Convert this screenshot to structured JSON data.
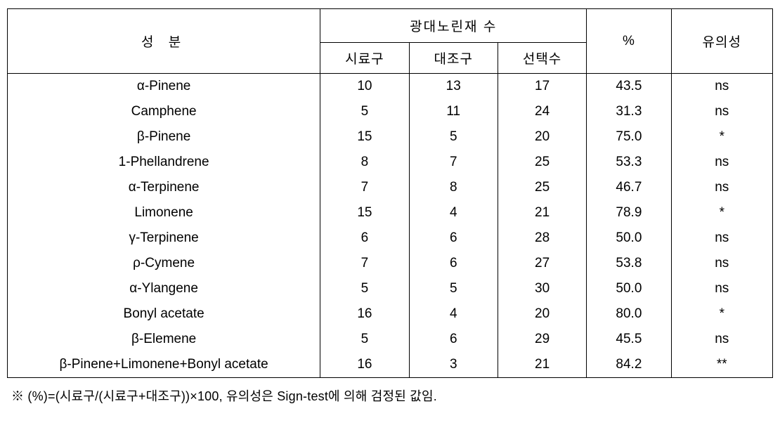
{
  "table": {
    "header": {
      "component": "성 분",
      "group_label": "광대노린재 수",
      "sub_columns": [
        "시료구",
        "대조구",
        "선택수"
      ],
      "percent": "%",
      "significance": "유의성"
    },
    "rows": [
      {
        "component": "α-Pinene",
        "sample": "10",
        "control": "13",
        "choice": "17",
        "percent": "43.5",
        "sig": "ns"
      },
      {
        "component": "Camphene",
        "sample": "5",
        "control": "11",
        "choice": "24",
        "percent": "31.3",
        "sig": "ns"
      },
      {
        "component": "β-Pinene",
        "sample": "15",
        "control": "5",
        "choice": "20",
        "percent": "75.0",
        "sig": "*"
      },
      {
        "component": "1-Phellandrene",
        "sample": "8",
        "control": "7",
        "choice": "25",
        "percent": "53.3",
        "sig": "ns"
      },
      {
        "component": "α-Terpinene",
        "sample": "7",
        "control": "8",
        "choice": "25",
        "percent": "46.7",
        "sig": "ns"
      },
      {
        "component": "Limonene",
        "sample": "15",
        "control": "4",
        "choice": "21",
        "percent": "78.9",
        "sig": "*"
      },
      {
        "component": "γ-Terpinene",
        "sample": "6",
        "control": "6",
        "choice": "28",
        "percent": "50.0",
        "sig": "ns"
      },
      {
        "component": "ρ-Cymene",
        "sample": "7",
        "control": "6",
        "choice": "27",
        "percent": "53.8",
        "sig": "ns"
      },
      {
        "component": "α-Ylangene",
        "sample": "5",
        "control": "5",
        "choice": "30",
        "percent": "50.0",
        "sig": "ns"
      },
      {
        "component": "Bonyl acetate",
        "sample": "16",
        "control": "4",
        "choice": "20",
        "percent": "80.0",
        "sig": "*"
      },
      {
        "component": "β-Elemene",
        "sample": "5",
        "control": "6",
        "choice": "29",
        "percent": "45.5",
        "sig": "ns"
      },
      {
        "component": "β-Pinene+Limonene+Bonyl acetate",
        "sample": "16",
        "control": "3",
        "choice": "21",
        "percent": "84.2",
        "sig": "**"
      }
    ],
    "footnote": "※ (%)=(시료구/(시료구+대조구))×100, 유의성은 Sign-test에 의해 검정된 값임.",
    "style": {
      "border_color": "#000000",
      "background_color": "#ffffff",
      "text_color": "#000000",
      "header_fontsize": 19,
      "body_fontsize": 19,
      "footnote_fontsize": 18,
      "row_padding_v": 7,
      "col_widths_pct": {
        "component": 37,
        "sub": 10.5,
        "percent": 10,
        "sig": 12
      }
    }
  }
}
